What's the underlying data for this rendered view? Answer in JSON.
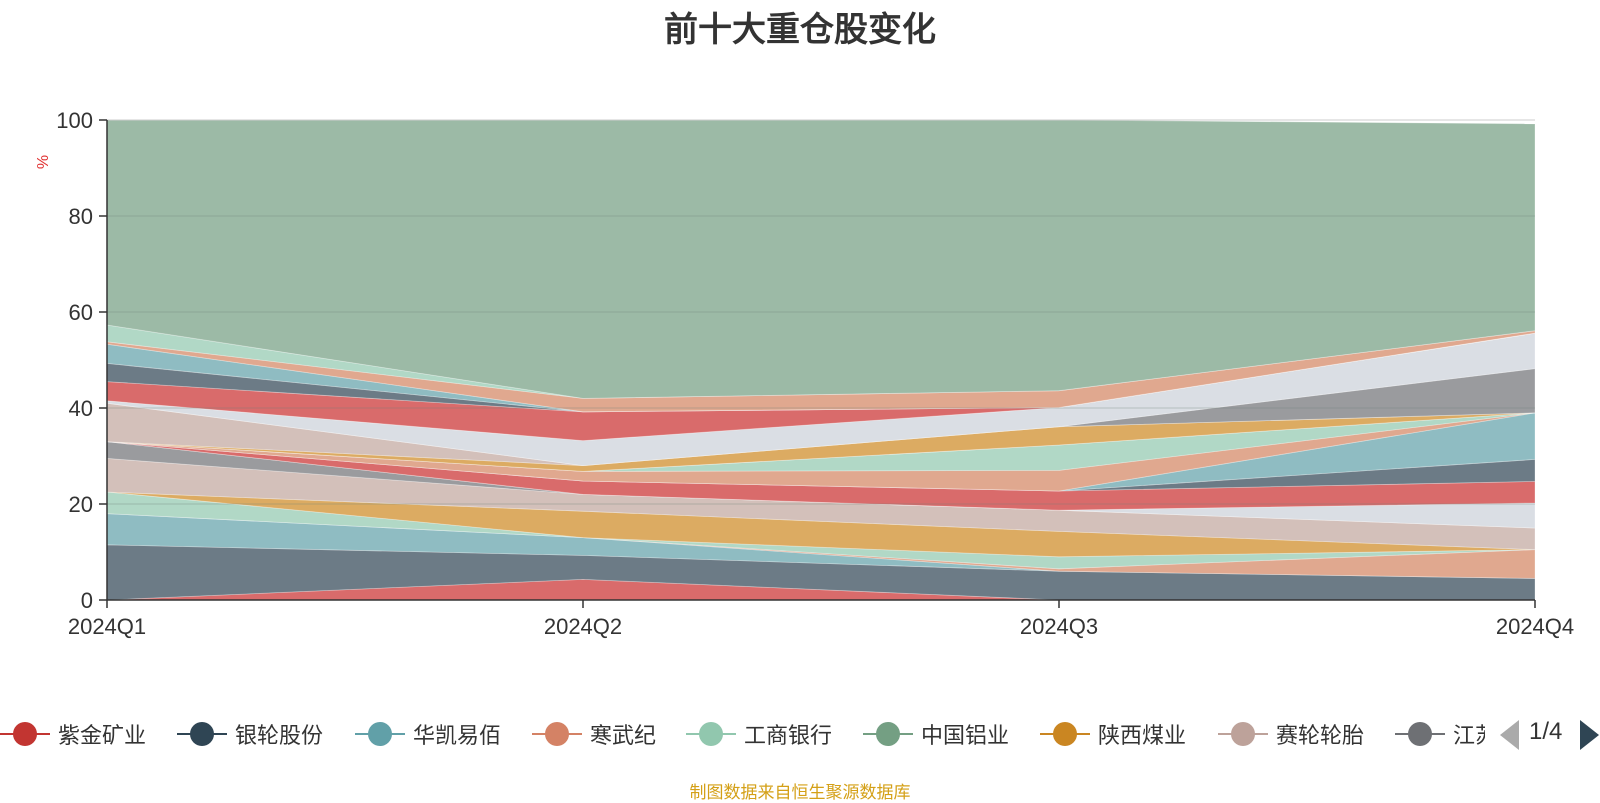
{
  "chart_data": {
    "type": "area",
    "title": "前十大重仓股变化",
    "ylabel": "%",
    "ylim": [
      0,
      100
    ],
    "yticks": [
      0,
      20,
      40,
      60,
      80,
      100
    ],
    "categories": [
      "2024Q1",
      "2024Q2",
      "2024Q3",
      "2024Q4"
    ],
    "grid": true,
    "stacked": true,
    "series": [
      {
        "name": "紫金矿业",
        "color": "#c23531",
        "fill": "#d96b6b",
        "values": [
          0,
          4.3,
          0,
          0
        ]
      },
      {
        "name": "银轮股份",
        "color": "#2f4554",
        "fill": "#6c7b86",
        "values": [
          11.5,
          5.0,
          6.0,
          4.5
        ]
      },
      {
        "name": "华凯易佰",
        "color": "#61a0a8",
        "fill": "#8fbcc2",
        "values": [
          6.5,
          3.7,
          0,
          0
        ]
      },
      {
        "name": "寒武纪",
        "color": "#d48265",
        "fill": "#e0a88f",
        "values": [
          0,
          0,
          0.5,
          6.0
        ]
      },
      {
        "name": "工商银行",
        "color": "#91c7ae",
        "fill": "#b1d8c6",
        "values": [
          4.5,
          0,
          2.5,
          0
        ]
      },
      {
        "name": "中国铝业",
        "color": "#749f83",
        "fill": "#9cbaa6",
        "values": [
          0,
          0,
          0,
          0
        ]
      },
      {
        "name": "陕西煤业",
        "color": "#ca8622",
        "fill": "#dcab62",
        "values": [
          0,
          5.5,
          5.3,
          0
        ]
      },
      {
        "name": "赛轮轮胎",
        "color": "#bda29a",
        "fill": "#d3c0ba",
        "values": [
          7.0,
          3.5,
          4.4,
          4.5
        ]
      },
      {
        "name": "江苏银行",
        "color": "#6e7074",
        "fill": "#9a9b9e",
        "values": [
          3.5,
          0,
          0,
          0
        ]
      }
    ]
  },
  "layers": [
    {
      "fill": "#d96b6b",
      "base": [
        0,
        0,
        0,
        0
      ],
      "values": [
        0,
        4.3,
        0,
        0
      ]
    },
    {
      "fill": "#6c7b86",
      "base": [
        0,
        4.3,
        0,
        0
      ],
      "values": [
        11.5,
        5.0,
        6.0,
        4.5
      ]
    },
    {
      "fill": "#8fbcc2",
      "base": [
        11.5,
        9.3,
        6.0,
        4.5
      ],
      "values": [
        6.5,
        3.7,
        0,
        0
      ]
    },
    {
      "fill": "#e0a88f",
      "base": [
        18.0,
        13.0,
        6.0,
        4.5
      ],
      "values": [
        0,
        0,
        0.5,
        6.0
      ]
    },
    {
      "fill": "#b1d8c6",
      "base": [
        18.0,
        13.0,
        6.5,
        10.5
      ],
      "values": [
        4.5,
        0,
        2.5,
        0
      ]
    },
    {
      "fill": "#dcab62",
      "base": [
        22.5,
        13.0,
        9.0,
        10.5
      ],
      "values": [
        0,
        5.5,
        5.3,
        0
      ]
    },
    {
      "fill": "#d3c0ba",
      "base": [
        22.5,
        18.5,
        14.3,
        10.5
      ],
      "values": [
        7.0,
        3.5,
        4.4,
        4.5
      ]
    },
    {
      "fill": "#9a9b9e",
      "base": [
        29.5,
        22.0,
        18.7,
        15.0
      ],
      "values": [
        3.5,
        0,
        0,
        0
      ]
    },
    {
      "fill": "#dadee4",
      "base": [
        33.0,
        22.0,
        18.7,
        15.0
      ],
      "values": [
        0,
        0,
        0,
        5.2
      ]
    },
    {
      "fill": "#d96b6b",
      "base": [
        33.0,
        22.0,
        18.7,
        20.2
      ],
      "values": [
        0,
        2.8,
        4.0,
        4.5
      ]
    },
    {
      "fill": "#6c7b86",
      "base": [
        33.0,
        24.8,
        22.7,
        24.7
      ],
      "values": [
        0,
        0,
        0,
        4.6
      ]
    },
    {
      "fill": "#8fbcc2",
      "base": [
        33.0,
        24.8,
        22.7,
        29.3
      ],
      "values": [
        0,
        0,
        0,
        9.7
      ]
    },
    {
      "fill": "#e0a88f",
      "base": [
        33.0,
        24.8,
        22.7,
        39.0
      ],
      "values": [
        0,
        2.0,
        4.3,
        0
      ]
    },
    {
      "fill": "#b1d8c6",
      "base": [
        33.0,
        26.8,
        27.0,
        39.0
      ],
      "values": [
        0,
        0,
        5.3,
        0
      ]
    },
    {
      "fill": "#9cbaa6",
      "base": [
        33.0,
        26.8,
        32.3,
        39.0
      ],
      "values": [
        0,
        0,
        0,
        0
      ]
    },
    {
      "fill": "#dcab62",
      "base": [
        33.0,
        26.8,
        32.3,
        39.0
      ],
      "values": [
        0,
        1.2,
        3.8,
        0
      ]
    },
    {
      "fill": "#d3c0ba",
      "base": [
        33.0,
        28.0,
        36.1,
        39.0
      ],
      "values": [
        8.0,
        0,
        0,
        0
      ]
    },
    {
      "fill": "#9a9b9e",
      "base": [
        41.0,
        28.0,
        36.1,
        39.0
      ],
      "values": [
        0,
        0,
        0,
        9.2
      ]
    },
    {
      "fill": "#dadee4",
      "base": [
        41.0,
        28.0,
        36.1,
        48.2
      ],
      "values": [
        0.5,
        5.2,
        4.0,
        7.4
      ]
    },
    {
      "fill": "#d96b6b",
      "base": [
        41.5,
        33.2,
        40.1,
        55.6
      ],
      "values": [
        4.0,
        6.0,
        0,
        0
      ]
    },
    {
      "fill": "#6c7b86",
      "base": [
        45.5,
        39.2,
        40.1,
        55.6
      ],
      "values": [
        3.8,
        0,
        0,
        0
      ]
    },
    {
      "fill": "#8fbcc2",
      "base": [
        49.3,
        39.2,
        40.1,
        55.6
      ],
      "values": [
        4.0,
        0,
        0,
        0
      ]
    },
    {
      "fill": "#e0a88f",
      "base": [
        53.3,
        39.2,
        40.1,
        55.6
      ],
      "values": [
        0.5,
        2.8,
        3.5,
        0.5
      ]
    },
    {
      "fill": "#b1d8c6",
      "base": [
        53.8,
        42.0,
        43.6,
        56.1
      ],
      "values": [
        3.5,
        0,
        0,
        0
      ]
    },
    {
      "fill": "#9cbaa6",
      "base": [
        57.3,
        42.0,
        43.6,
        56.1
      ],
      "values": [
        42.7,
        58.0,
        56.4,
        43.1
      ]
    }
  ],
  "legend": {
    "items": [
      {
        "name": "紫金矿业",
        "color": "#c23531"
      },
      {
        "name": "银轮股份",
        "color": "#2f4554"
      },
      {
        "name": "华凯易佰",
        "color": "#61a0a8"
      },
      {
        "name": "寒武纪",
        "color": "#d48265"
      },
      {
        "name": "工商银行",
        "color": "#91c7ae"
      },
      {
        "name": "中国铝业",
        "color": "#749f83"
      },
      {
        "name": "陕西煤业",
        "color": "#ca8622"
      },
      {
        "name": "赛轮轮胎",
        "color": "#bda29a"
      },
      {
        "name": "江苏银行",
        "color": "#6e7074"
      }
    ],
    "page": "1/4"
  },
  "source": "制图数据来自恒生聚源数据库"
}
